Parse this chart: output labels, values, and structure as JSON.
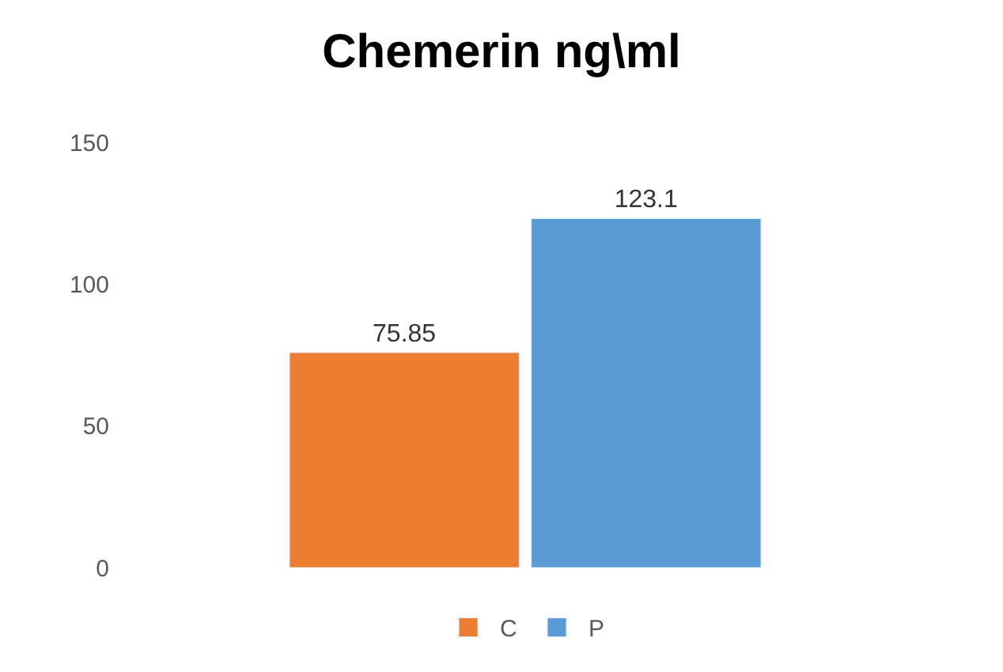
{
  "chart_data": {
    "type": "bar",
    "title": "Chemerin ng\\ml",
    "categories": [
      null
    ],
    "series": [
      {
        "name": "C",
        "color": "#ed7d31",
        "values": [
          75.85
        ]
      },
      {
        "name": "P",
        "color": "#5b9bd5",
        "values": [
          123.1
        ]
      }
    ],
    "ylim": [
      0,
      150
    ],
    "yticks": [
      0,
      50,
      100,
      150
    ],
    "legend": "bottom",
    "data_labels": true
  }
}
